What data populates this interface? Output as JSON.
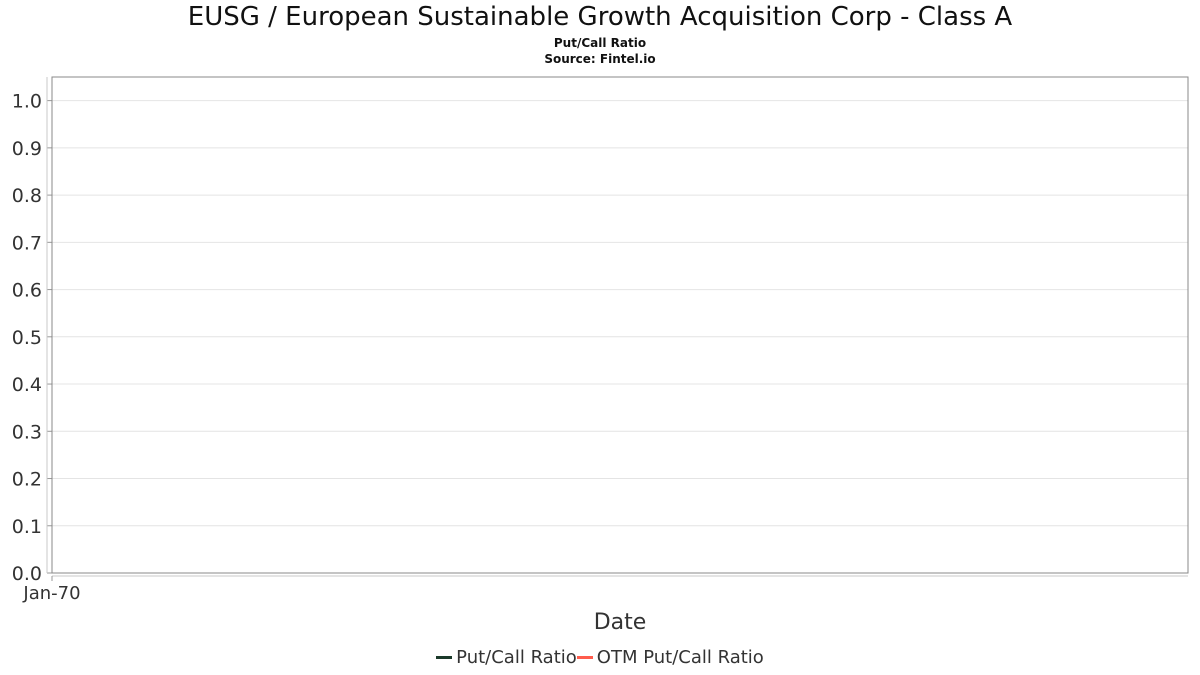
{
  "title": "EUSG / European Sustainable Growth Acquisition Corp - Class A",
  "subtitle": "Put/Call Ratio",
  "source": "Source: Fintel.io",
  "chart_data": {
    "type": "line",
    "title": "EUSG / European Sustainable Growth Acquisition Corp - Class A",
    "subtitle": "Put/Call Ratio",
    "xlabel": "Date",
    "ylabel": "",
    "x_ticks": [
      "Jan-70"
    ],
    "y_ticks": [
      "0.0",
      "0.1",
      "0.2",
      "0.3",
      "0.4",
      "0.5",
      "0.6",
      "0.7",
      "0.8",
      "0.9",
      "1.0"
    ],
    "ylim": [
      0,
      1.05
    ],
    "grid": true,
    "legend_position": "bottom",
    "series": [
      {
        "name": "Put/Call Ratio",
        "color": "#1b3a2a",
        "x": [],
        "values": []
      },
      {
        "name": "OTM Put/Call Ratio",
        "color": "#ff5c4d",
        "x": [],
        "values": []
      }
    ]
  }
}
